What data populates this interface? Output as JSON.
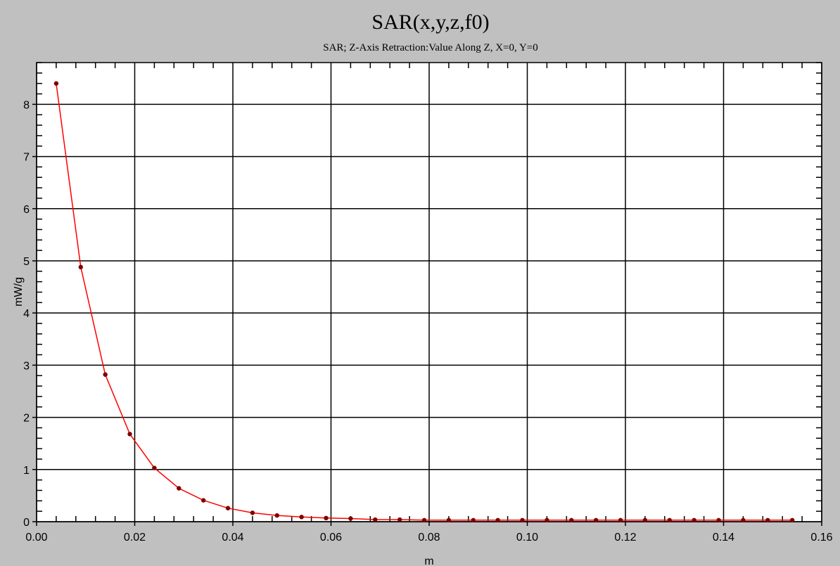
{
  "chart_data": {
    "type": "line",
    "title": "SAR(x,y,z,f0)",
    "subtitle": "SAR; Z-Axis Retraction:Value Along Z, X=0, Y=0",
    "xlabel": "m",
    "ylabel": "mW/g",
    "xlim": [
      0.0,
      0.16
    ],
    "ylim": [
      0,
      8.8
    ],
    "x_ticks": [
      0.0,
      0.02,
      0.04,
      0.06,
      0.08,
      0.1,
      0.12,
      0.14,
      0.16
    ],
    "x_tick_labels": [
      "0.00",
      "0.02",
      "0.04",
      "0.06",
      "0.08",
      "0.10",
      "0.12",
      "0.14",
      "0.16"
    ],
    "y_ticks": [
      0,
      1,
      2,
      3,
      4,
      5,
      6,
      7,
      8
    ],
    "y_tick_labels": [
      "0",
      "1",
      "2",
      "3",
      "4",
      "5",
      "6",
      "7",
      "8"
    ],
    "grid": true,
    "series": [
      {
        "color": "#ff0000",
        "marker_color": "#800000",
        "x": [
          0.004,
          0.009,
          0.014,
          0.019,
          0.024,
          0.029,
          0.034,
          0.039,
          0.044,
          0.049,
          0.054,
          0.059,
          0.064,
          0.069,
          0.074,
          0.079,
          0.084,
          0.089,
          0.094,
          0.099,
          0.104,
          0.109,
          0.114,
          0.119,
          0.124,
          0.129,
          0.134,
          0.139,
          0.144,
          0.149,
          0.154
        ],
        "y": [
          8.4,
          4.88,
          2.82,
          1.68,
          1.03,
          0.64,
          0.41,
          0.26,
          0.17,
          0.12,
          0.09,
          0.07,
          0.06,
          0.04,
          0.04,
          0.03,
          0.03,
          0.03,
          0.03,
          0.03,
          0.03,
          0.03,
          0.03,
          0.03,
          0.03,
          0.03,
          0.03,
          0.03,
          0.03,
          0.03,
          0.03
        ]
      }
    ]
  }
}
